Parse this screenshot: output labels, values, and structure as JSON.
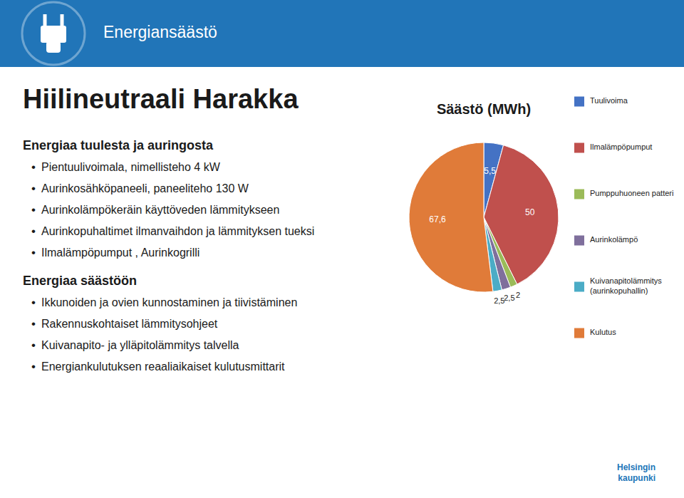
{
  "page": {
    "header_text": "Energiansäästö",
    "header_color": "#2175b8",
    "title": "Hiilineutraali Harakka",
    "text_color": "#1a1a1a",
    "bullet": "•",
    "sections": [
      {
        "header": "Energiaa tuulesta ja auringosta",
        "items": [
          "Pientuulivoimala, nimellisteho 4 kW",
          "Aurinkosähköpaneeli, paneeliteho 130 W",
          "Aurinkolämpökeräin käyttöveden lämmitykseen",
          "Aurinkopuhaltimet ilmanvaihdon ja lämmityksen tueksi",
          "Ilmalämpöpumput ,  Aurinkogrilli"
        ]
      },
      {
        "header": "Energiaa säästöön",
        "items": [
          "Ikkunoiden ja ovien kunnostaminen ja tiivistäminen",
          "Rakennuskohtaiset lämmitysohjeet",
          "Kuivanapito- ja ylläpitolämmitys talvella",
          "Energiankulutuksen reaaliaikaiset kulutusmittarit"
        ]
      }
    ],
    "logo_text": "Helsingin\nkaupunki"
  },
  "chart_data": {
    "type": "pie",
    "title": "Säästö (MWh)",
    "categories": [
      "Tuulivoima",
      "Ilmalämpöpumput",
      "Pumppuhuoneen patteri",
      "Aurinkolämpö",
      "Kuivanapitolämmitys\n(aurinkopuhallin)",
      "Kulutus"
    ],
    "values": [
      5.5,
      50,
      2,
      2.5,
      2.5,
      67.6
    ],
    "value_labels": [
      "5,5",
      "50",
      "2",
      "2,5",
      "2,5",
      "67,6"
    ],
    "colors": [
      "#4472c4",
      "#c0504d",
      "#9bbb59",
      "#7f6f9c",
      "#4bacc6",
      "#e07b39"
    ],
    "data_labels": true,
    "legend": "right"
  }
}
